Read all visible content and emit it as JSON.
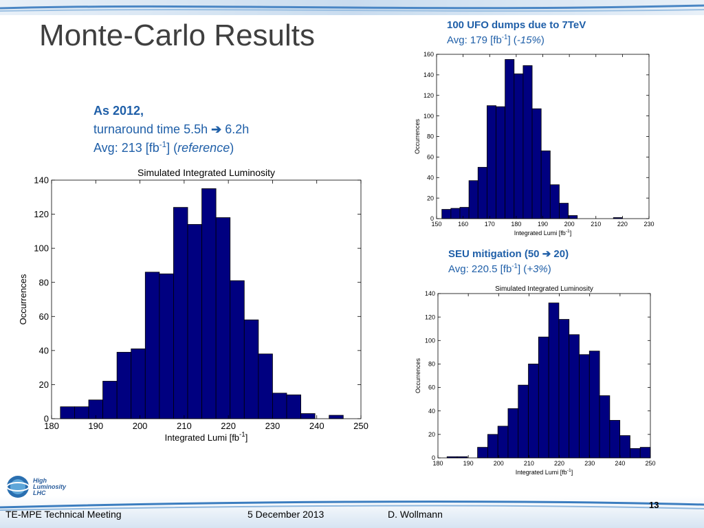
{
  "slide": {
    "title": "Monte-Carlo Results",
    "page_number": "13",
    "footer": {
      "left": "TE-MPE Technical Meeting",
      "center": "5 December 2013",
      "right": "D. Wollmann"
    },
    "logo": {
      "line1": "High",
      "line2": "Luminosity",
      "line3": "LHC"
    }
  },
  "captions": {
    "main": {
      "line1": "As 2012,",
      "line2a": "turnaround time 5.5h ",
      "line2b": " 6.2h",
      "avg_prefix": "Avg: 213 [fb",
      "sup": "-1",
      "avg_mid": "] (",
      "avg_italic": "reference",
      "avg_suffix": ")"
    },
    "ufo": {
      "line1": "100 UFO dumps due to 7TeV",
      "avg_prefix": "Avg: 179 [fb",
      "sup": "-1",
      "avg_mid": "] (",
      "avg_italic": "-15%",
      "avg_suffix": ")"
    },
    "seu": {
      "line1a": "SEU mitigation (50 ",
      "line1b": " 20)",
      "avg_prefix": "Avg: 220.5 [fb",
      "sup": "-1",
      "avg_mid": "] (",
      "avg_italic": "+3%",
      "avg_suffix": ")"
    }
  },
  "colors": {
    "bar": "#000080",
    "caption": "#1f5fa8",
    "band": "#3b7dbf"
  },
  "chart_data": [
    {
      "id": "main",
      "type": "bar",
      "title": "Simulated Integrated Luminosity",
      "xlabel": "Integrated Lumi [fb",
      "xlabel_sup": "-1",
      "xlabel_end": "]",
      "ylabel": "Occurrences",
      "xlim": [
        180,
        250
      ],
      "ylim": [
        0,
        140
      ],
      "xticks": [
        180,
        190,
        200,
        210,
        220,
        230,
        240,
        250
      ],
      "yticks": [
        0,
        20,
        40,
        60,
        80,
        100,
        120,
        140
      ],
      "bin_start": 182,
      "bin_width": 3.2,
      "values": [
        7,
        7,
        11,
        22,
        39,
        41,
        86,
        85,
        124,
        114,
        135,
        118,
        81,
        58,
        38,
        15,
        14,
        3,
        0,
        2
      ]
    },
    {
      "id": "ufo",
      "type": "bar",
      "title": "",
      "xlabel": "Integrated Lumi [fb",
      "xlabel_sup": "-1",
      "xlabel_end": "]",
      "ylabel": "Occurrences",
      "xlim": [
        150,
        230
      ],
      "ylim": [
        0,
        160
      ],
      "xticks": [
        150,
        160,
        170,
        180,
        190,
        200,
        210,
        220,
        230
      ],
      "yticks": [
        0,
        20,
        40,
        60,
        80,
        100,
        120,
        140,
        160
      ],
      "bin_start": 152,
      "bin_width": 3.4,
      "values": [
        9,
        10,
        11,
        37,
        50,
        110,
        109,
        155,
        141,
        149,
        107,
        66,
        33,
        15,
        3,
        0,
        0,
        0,
        0,
        1
      ]
    },
    {
      "id": "seu",
      "type": "bar",
      "title": "Simulated Integrated Luminosity",
      "xlabel": "Integrated Lumi [fb",
      "xlabel_sup": "-1",
      "xlabel_end": "]",
      "ylabel": "Occurrences",
      "xlim": [
        180,
        250
      ],
      "ylim": [
        0,
        140
      ],
      "xticks": [
        180,
        190,
        200,
        210,
        220,
        230,
        240,
        250
      ],
      "yticks": [
        0,
        20,
        40,
        60,
        80,
        100,
        120,
        140
      ],
      "bin_start": 183,
      "bin_width": 3.35,
      "values": [
        1,
        1,
        0,
        9,
        20,
        27,
        42,
        62,
        80,
        103,
        132,
        118,
        105,
        88,
        91,
        53,
        32,
        19,
        8,
        9
      ]
    }
  ]
}
